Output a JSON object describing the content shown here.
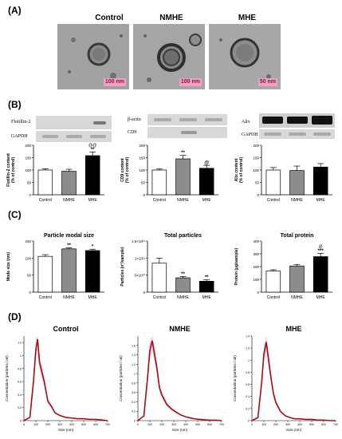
{
  "panel_labels": [
    "(A)",
    "(B)",
    "(C)",
    "(D)"
  ],
  "groups": [
    "Control",
    "NMHE",
    "MHE"
  ],
  "panelA": {
    "scale_labels": [
      "100 nm",
      "100 nm",
      "50 nm"
    ]
  },
  "panelB": {
    "blot_labels": {
      "flotillin": [
        "Flotillin-2",
        "GAPDH"
      ],
      "cd9": [
        "β-actin",
        "CD9"
      ],
      "alix": [
        "Alix",
        "GAPDH"
      ]
    }
  },
  "chart_data": [
    {
      "type": "bar",
      "panel": "B1",
      "categories": [
        "Control",
        "NMHE",
        "MHE"
      ],
      "values": [
        100,
        95,
        158
      ],
      "errors": [
        5,
        8,
        15
      ],
      "significance": [
        "",
        "",
        "**"
      ],
      "significance_top": [
        "",
        "",
        "@@"
      ],
      "ylabel": "Flotillin-2 content\n(% of control)",
      "ylim": [
        0,
        200
      ],
      "yticks": [
        0,
        50,
        100,
        150,
        200
      ],
      "colors": [
        "#ffffff",
        "#8c8c8c",
        "#000000"
      ]
    },
    {
      "type": "bar",
      "panel": "B2",
      "categories": [
        "Control",
        "NMHE",
        "MHE"
      ],
      "values": [
        100,
        145,
        107
      ],
      "errors": [
        4,
        14,
        12
      ],
      "significance": [
        "",
        "**",
        "@"
      ],
      "ylabel": "CD9 content\n(% of control)",
      "ylim": [
        0,
        200
      ],
      "yticks": [
        0,
        50,
        100,
        150,
        200
      ],
      "colors": [
        "#ffffff",
        "#8c8c8c",
        "#000000"
      ]
    },
    {
      "type": "bar",
      "panel": "B3",
      "categories": [
        "Control",
        "NMHE",
        "MHE"
      ],
      "values": [
        100,
        98,
        112
      ],
      "errors": [
        10,
        18,
        14
      ],
      "significance": [
        "",
        "",
        ""
      ],
      "ylabel": "Alix content\n(% of control)",
      "ylim": [
        0,
        200
      ],
      "yticks": [
        0,
        50,
        100,
        150,
        200
      ],
      "colors": [
        "#ffffff",
        "#8c8c8c",
        "#000000"
      ]
    },
    {
      "type": "bar",
      "panel": "C1",
      "title": "Particle modal size",
      "categories": [
        "Control",
        "NMHE",
        "MHE"
      ],
      "values": [
        105,
        127,
        122
      ],
      "errors": [
        5,
        3,
        4
      ],
      "significance": [
        "",
        "**",
        "*"
      ],
      "ylabel": "Mode size (nm)",
      "ylim": [
        0,
        150
      ],
      "yticks": [
        0,
        50,
        100,
        150
      ],
      "colors": [
        "#ffffff",
        "#8c8c8c",
        "#000000"
      ]
    },
    {
      "type": "bar",
      "panel": "C2",
      "title": "Total particles",
      "categories": [
        "Control",
        "NMHE",
        "MHE"
      ],
      "values": [
        8.5,
        4.2,
        3.2
      ],
      "errors": [
        1.5,
        0.4,
        0.4
      ],
      "significance": [
        "",
        "**",
        "**"
      ],
      "ylabel": "Particles (n°/sample)",
      "ylim": [
        0,
        15
      ],
      "yticks": [
        0,
        5,
        10,
        15
      ],
      "ytick_labels": [
        "0",
        "5×10¹⁰",
        "1×10¹¹",
        "1.5×10¹¹"
      ],
      "colors": [
        "#ffffff",
        "#8c8c8c",
        "#000000"
      ]
    },
    {
      "type": "bar",
      "panel": "C3",
      "title": "Total protein",
      "categories": [
        "Control",
        "NMHE",
        "MHE"
      ],
      "values": [
        165,
        205,
        278
      ],
      "errors": [
        10,
        12,
        25
      ],
      "significance": [
        "",
        "",
        "***"
      ],
      "significance_top": [
        "",
        "",
        "@"
      ],
      "ylabel": "Protein (µg/sample)",
      "ylim": [
        0,
        400
      ],
      "yticks": [
        0,
        100,
        200,
        300,
        400
      ],
      "colors": [
        "#ffffff",
        "#8c8c8c",
        "#000000"
      ]
    },
    {
      "type": "area",
      "panel": "D1",
      "title": "Control",
      "x": [
        0,
        50,
        80,
        100,
        115,
        130,
        150,
        170,
        200,
        230,
        260,
        300,
        350,
        400,
        450,
        500,
        550,
        600,
        650,
        700
      ],
      "y": [
        0,
        0.05,
        0.6,
        1.1,
        1.25,
        0.9,
        0.75,
        0.6,
        0.3,
        0.22,
        0.12,
        0.08,
        0.05,
        0.04,
        0.03,
        0.03,
        0.02,
        0.02,
        0.01,
        0.0
      ],
      "xlabel": "Size (nm)",
      "ylabel": "Concentration (particles / ml)",
      "xlim": [
        0,
        700
      ],
      "xticks": [
        0,
        100,
        200,
        300,
        400,
        500,
        600,
        700
      ],
      "ylim": [
        0,
        1.3
      ],
      "yticks": [
        0,
        0.2,
        0.4,
        0.6,
        0.8,
        1.0,
        1.2
      ],
      "color": "#a01010"
    },
    {
      "type": "area",
      "panel": "D2",
      "title": "NMHE",
      "x": [
        0,
        50,
        80,
        100,
        120,
        140,
        160,
        180,
        200,
        240,
        280,
        320,
        360,
        400,
        450,
        500,
        550,
        600,
        650,
        700
      ],
      "y": [
        0,
        0.1,
        0.9,
        1.5,
        1.7,
        1.4,
        1.1,
        0.7,
        0.55,
        0.35,
        0.25,
        0.18,
        0.12,
        0.08,
        0.05,
        0.03,
        0.02,
        0.01,
        0.01,
        0.0
      ],
      "xlabel": "Size (nm)",
      "ylabel": "Concentration (particles / ml)",
      "xlim": [
        0,
        700
      ],
      "xticks": [
        0,
        100,
        200,
        300,
        400,
        500,
        600,
        700
      ],
      "ylim": [
        0,
        1.8
      ],
      "yticks": [
        0,
        0.2,
        0.4,
        0.6,
        0.8,
        1.0,
        1.2,
        1.4,
        1.6
      ],
      "color": "#a01010"
    },
    {
      "type": "area",
      "panel": "D3",
      "title": "MHE",
      "x": [
        0,
        50,
        80,
        100,
        120,
        140,
        160,
        180,
        200,
        240,
        280,
        320,
        360,
        400,
        450,
        500,
        550,
        600,
        650,
        700
      ],
      "y": [
        0,
        0.05,
        0.6,
        1.1,
        1.3,
        1.0,
        0.7,
        0.45,
        0.3,
        0.15,
        0.08,
        0.05,
        0.03,
        0.03,
        0.02,
        0.02,
        0.01,
        0.01,
        0.0,
        0.0
      ],
      "xlabel": "Size (nm)",
      "ylabel": "Concentration (particles / ml)",
      "xlim": [
        0,
        700
      ],
      "xticks": [
        0,
        100,
        200,
        300,
        400,
        500,
        600,
        700
      ],
      "ylim": [
        0,
        1.4
      ],
      "yticks": [
        0,
        0.2,
        0.4,
        0.6,
        0.8,
        1.0,
        1.2,
        1.4
      ],
      "color": "#a01010"
    }
  ]
}
